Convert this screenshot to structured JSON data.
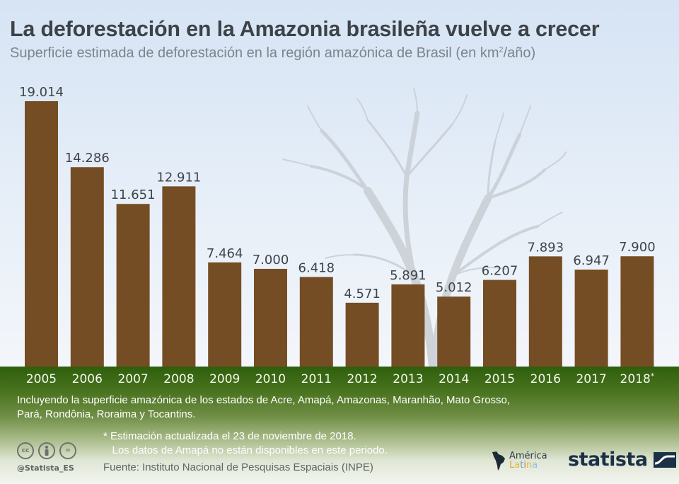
{
  "header": {
    "title": "La deforestación en la Amazonia brasileña vuelve a crecer",
    "subtitle_prefix": "Superficie estimada de deforestación en la región amazónica de Brasil (en km",
    "subtitle_sup": "2",
    "subtitle_suffix": "/año)"
  },
  "chart_data": {
    "type": "bar",
    "title": "La deforestación en la Amazonia brasileña vuelve a crecer",
    "subtitle": "Superficie estimada de deforestación en la región amazónica de Brasil (en km²/año)",
    "xlabel": "",
    "ylabel": "km²/año",
    "categories": [
      "2005",
      "2006",
      "2007",
      "2008",
      "2009",
      "2010",
      "2011",
      "2012",
      "2013",
      "2014",
      "2015",
      "2016",
      "2017",
      "2018*"
    ],
    "values": [
      19014,
      14286,
      11651,
      12911,
      7464,
      7000,
      6418,
      4571,
      5891,
      5012,
      6207,
      7893,
      6947,
      7900
    ],
    "value_labels": [
      "19.014",
      "14.286",
      "11.651",
      "12.911",
      "7.464",
      "7.000",
      "6.418",
      "4.571",
      "5.891",
      "5.012",
      "6.207",
      "7.893",
      "6.947",
      "7.900"
    ],
    "ylim": [
      0,
      19014
    ],
    "grid": false,
    "legend": "none",
    "bar_color": "#754d24"
  },
  "notes": {
    "states": "Incluyendo la superficie amazónica de los estados de Acre, Amapá, Amazonas, Maranhão, Mato Grosso, Pará, Rondônia, Roraima y Tocantins.",
    "footnote": "* Estimación actualizada el 23 de noviembre de 2018.\n   Los datos de Amapá no están disponibles en este periodo.",
    "source": "Fuente: Instituto Nacional de Pesquisas Espaciais (INPE)"
  },
  "footer": {
    "license_icons": [
      "cc-icon",
      "attribution-icon",
      "no-derivatives-icon"
    ],
    "cc_text": "cc",
    "nd_text": "=",
    "handle": "@Statista_ES",
    "partner_logo_line1": "América",
    "partner_logo_line2": "Latina",
    "brand": "statista"
  },
  "colors": {
    "bar": "#754d24",
    "ground": "#3c6a14",
    "title": "#3c4248",
    "brand": "#1c3147"
  }
}
